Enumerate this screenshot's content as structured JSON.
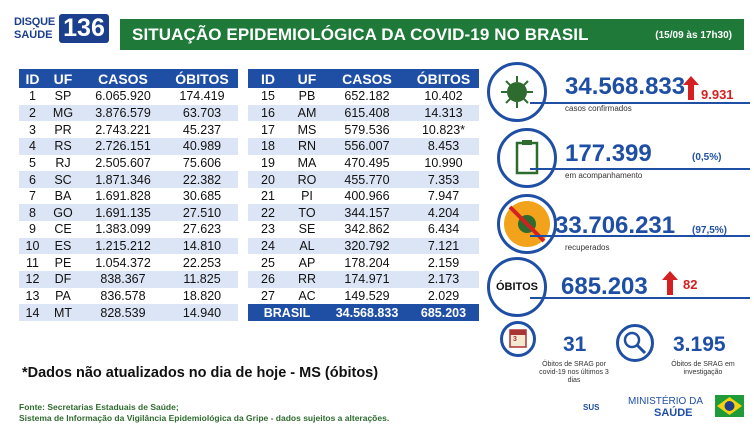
{
  "logo": {
    "line1": "DISQUE",
    "line2": "SAÚDE",
    "number": "136"
  },
  "header": {
    "title": "SITUAÇÃO EPIDEMIOLÓGICA DA COVID-19 NO BRASIL",
    "date": "(15/09 às 17h30)"
  },
  "table": {
    "columns": [
      "ID",
      "UF",
      "CASOS",
      "ÓBITOS"
    ],
    "left": [
      [
        "1",
        "SP",
        "6.065.920",
        "174.419"
      ],
      [
        "2",
        "MG",
        "3.876.579",
        "63.703"
      ],
      [
        "3",
        "PR",
        "2.743.221",
        "45.237"
      ],
      [
        "4",
        "RS",
        "2.726.151",
        "40.989"
      ],
      [
        "5",
        "RJ",
        "2.505.607",
        "75.606"
      ],
      [
        "6",
        "SC",
        "1.871.346",
        "22.382"
      ],
      [
        "7",
        "BA",
        "1.691.828",
        "30.685"
      ],
      [
        "8",
        "GO",
        "1.691.135",
        "27.510"
      ],
      [
        "9",
        "CE",
        "1.383.099",
        "27.623"
      ],
      [
        "10",
        "ES",
        "1.215.212",
        "14.810"
      ],
      [
        "11",
        "PE",
        "1.054.372",
        "22.253"
      ],
      [
        "12",
        "DF",
        "838.367",
        "11.825"
      ],
      [
        "13",
        "PA",
        "836.578",
        "18.820"
      ],
      [
        "14",
        "MT",
        "828.539",
        "14.940"
      ]
    ],
    "right": [
      [
        "15",
        "PB",
        "652.182",
        "10.402"
      ],
      [
        "16",
        "AM",
        "615.408",
        "14.313"
      ],
      [
        "17",
        "MS",
        "579.536",
        "10.823*"
      ],
      [
        "18",
        "RN",
        "556.007",
        "8.453"
      ],
      [
        "19",
        "MA",
        "470.495",
        "10.990"
      ],
      [
        "20",
        "RO",
        "455.770",
        "7.353"
      ],
      [
        "21",
        "PI",
        "400.966",
        "7.947"
      ],
      [
        "22",
        "TO",
        "344.157",
        "4.204"
      ],
      [
        "23",
        "SE",
        "342.862",
        "6.434"
      ],
      [
        "24",
        "AL",
        "320.792",
        "7.121"
      ],
      [
        "25",
        "AP",
        "178.204",
        "2.159"
      ],
      [
        "26",
        "RR",
        "174.971",
        "2.173"
      ],
      [
        "27",
        "AC",
        "149.529",
        "2.029"
      ]
    ],
    "total": {
      "label": "BRASIL",
      "casos": "34.568.833",
      "obitos": "685.203"
    }
  },
  "note": "*Dados não atualizados no dia de hoje - MS (óbitos)",
  "source": {
    "line1": "Fonte: Secretarias Estaduais de Saúde;",
    "line2": "Sistema de Informação da Vigilância Epidemiológica da Gripe - dados sujeitos a alterações."
  },
  "stats": {
    "confirmados": {
      "value": "34.568.833",
      "increase": "9.931",
      "label": "casos confirmados"
    },
    "acompanhamento": {
      "value": "177.399",
      "pct": "(0,5%)",
      "label": "em acompanhamento"
    },
    "recuperados": {
      "value": "33.706.231",
      "pct": "(97,5%)",
      "label": "recuperados"
    },
    "obitos": {
      "label": "ÓBITOS",
      "value": "685.203",
      "increase": "82"
    },
    "srag_3dias": {
      "value": "31",
      "label": "Óbitos de SRAG por covid-19 nos últimos 3 dias",
      "icon_text": "3"
    },
    "srag_investigacao": {
      "value": "3.195",
      "label": "Óbitos de SRAG em investigação"
    }
  },
  "footer": {
    "sus": "SUS",
    "ministerio": "MINISTÉRIO DA",
    "saude": "SAÚDE"
  },
  "colors": {
    "green": "#1f7a3a",
    "blue": "#1f4fa5",
    "red": "#d42020"
  }
}
